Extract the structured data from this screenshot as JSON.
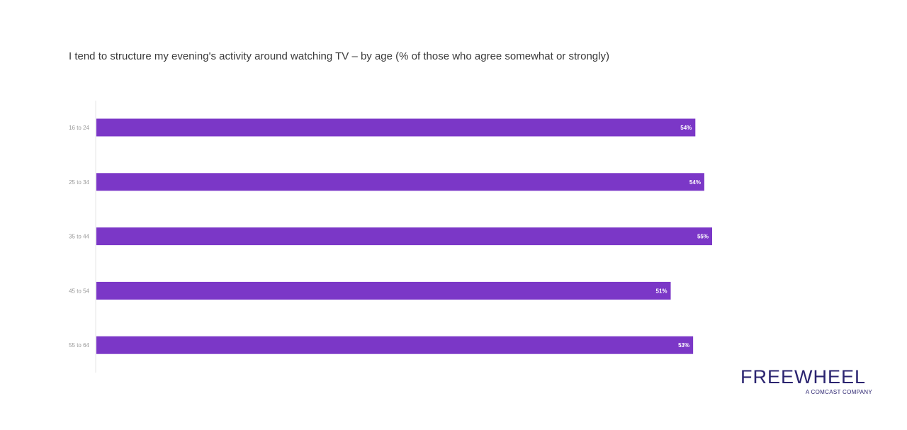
{
  "chart_data": {
    "type": "bar",
    "orientation": "horizontal",
    "title": "I tend to structure my evening's activity around watching TV – by age (% of those who agree somewhat or strongly)",
    "categories": [
      "16 to 24",
      "25 to 34",
      "35 to 44",
      "45 to 54",
      "55 to 64"
    ],
    "values": [
      54,
      54,
      55,
      51,
      53
    ],
    "data_labels": [
      "54%",
      "54%",
      "55%",
      "51%",
      "53%"
    ],
    "bar_lengths_percent": [
      53.5,
      54.3,
      55.0,
      51.3,
      53.3
    ],
    "xlim": [
      0,
      100
    ],
    "grid": false,
    "bar_color": "#7b37c7",
    "label_color": "#ffffff"
  },
  "logo": {
    "name": "FREEWHEEL",
    "tagline": "A COMCAST COMPANY"
  }
}
